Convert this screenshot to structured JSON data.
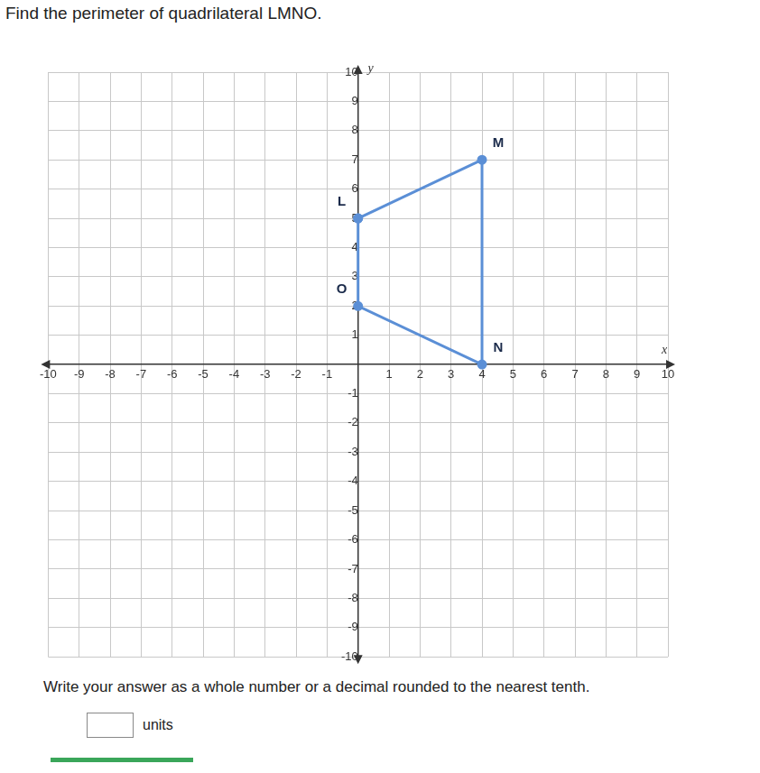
{
  "chart_data": {
    "type": "scatter",
    "title": "Find the perimeter of quadrilateral LMNO.",
    "x_label": "x",
    "y_label": "y",
    "x": [
      0,
      4,
      4,
      0
    ],
    "values": [
      5,
      7,
      0,
      2
    ],
    "point_labels": [
      "L",
      "M",
      "N",
      "O"
    ],
    "color": "#5b8fd6",
    "marker": "circle",
    "line_style": "solid",
    "grid": true,
    "xlim": [
      -10,
      10
    ],
    "xticks": [
      -10,
      -9,
      -8,
      -7,
      -6,
      -5,
      -4,
      -3,
      -2,
      -1,
      1,
      2,
      3,
      4,
      5,
      6,
      7,
      8,
      9,
      10
    ],
    "ylim": [
      -10,
      10
    ],
    "yticks": [
      -10,
      -9,
      -8,
      -7,
      -6,
      -5,
      -4,
      -3,
      -2,
      -1,
      1,
      2,
      3,
      4,
      5,
      6,
      7,
      8,
      9,
      10
    ]
  },
  "instructions": "Write your answer as a whole number or a decimal rounded to the nearest tenth.",
  "answer_unit": "units"
}
